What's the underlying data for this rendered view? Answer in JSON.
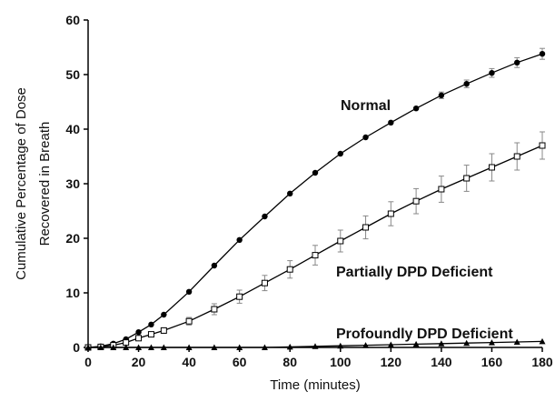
{
  "chart_data": {
    "type": "line",
    "title": "",
    "xlabel": "Time (minutes)",
    "ylabel_lines": [
      "Cumulative Percentage of Dose",
      "Recovered in Breath"
    ],
    "xlim": [
      0,
      180
    ],
    "ylim": [
      0,
      60
    ],
    "x_ticks": [
      0,
      20,
      40,
      60,
      80,
      100,
      120,
      140,
      160,
      180
    ],
    "y_ticks": [
      0,
      10,
      20,
      30,
      40,
      50,
      60
    ],
    "grid": false,
    "legend": "none",
    "series": [
      {
        "name": "Normal",
        "marker": "filled-circle",
        "color": "#000000",
        "x": [
          0,
          5,
          10,
          15,
          20,
          25,
          30,
          40,
          50,
          60,
          70,
          80,
          90,
          100,
          110,
          120,
          130,
          140,
          150,
          160,
          170,
          180
        ],
        "y": [
          0,
          0.2,
          0.7,
          1.5,
          2.8,
          4.2,
          6,
          10.2,
          15,
          19.7,
          24,
          28.2,
          32,
          35.5,
          38.5,
          41.2,
          43.8,
          46.2,
          48.3,
          50.3,
          52.2,
          53.8
        ],
        "error": [
          0,
          0,
          0,
          0,
          0,
          0,
          0,
          0,
          0,
          0,
          0,
          0,
          0,
          0,
          0,
          0,
          0,
          0.6,
          0.7,
          0.8,
          0.9,
          1.0
        ]
      },
      {
        "name": "Partially DPD Deficient",
        "marker": "open-square",
        "color": "#000000",
        "x": [
          0,
          5,
          10,
          15,
          20,
          25,
          30,
          40,
          50,
          60,
          70,
          80,
          90,
          100,
          110,
          120,
          130,
          140,
          150,
          160,
          170,
          180
        ],
        "y": [
          0,
          0.1,
          0.4,
          0.9,
          1.7,
          2.4,
          3.1,
          4.8,
          7,
          9.3,
          11.8,
          14.3,
          16.9,
          19.5,
          22,
          24.5,
          26.8,
          29,
          31,
          33,
          35,
          37
        ],
        "error": [
          0,
          0,
          0,
          0,
          0.3,
          0.4,
          0.5,
          0.7,
          1.0,
          1.2,
          1.4,
          1.6,
          1.8,
          2.0,
          2.1,
          2.2,
          2.3,
          2.4,
          2.4,
          2.5,
          2.5,
          2.5
        ]
      },
      {
        "name": "Profoundly DPD Deficient",
        "marker": "filled-triangle",
        "color": "#000000",
        "x": [
          0,
          5,
          10,
          15,
          20,
          25,
          30,
          40,
          50,
          60,
          70,
          80,
          90,
          100,
          110,
          120,
          130,
          140,
          150,
          160,
          170,
          180
        ],
        "y": [
          0,
          0,
          0,
          0,
          0,
          0,
          0,
          0,
          0,
          0,
          0,
          0.1,
          0.2,
          0.3,
          0.4,
          0.5,
          0.6,
          0.7,
          0.8,
          0.9,
          1.0,
          1.1
        ],
        "error": [
          0,
          0,
          0,
          0,
          0,
          0,
          0,
          0,
          0,
          0,
          0,
          0,
          0,
          0,
          0,
          0,
          0,
          0,
          0,
          0,
          0,
          0
        ]
      }
    ]
  }
}
